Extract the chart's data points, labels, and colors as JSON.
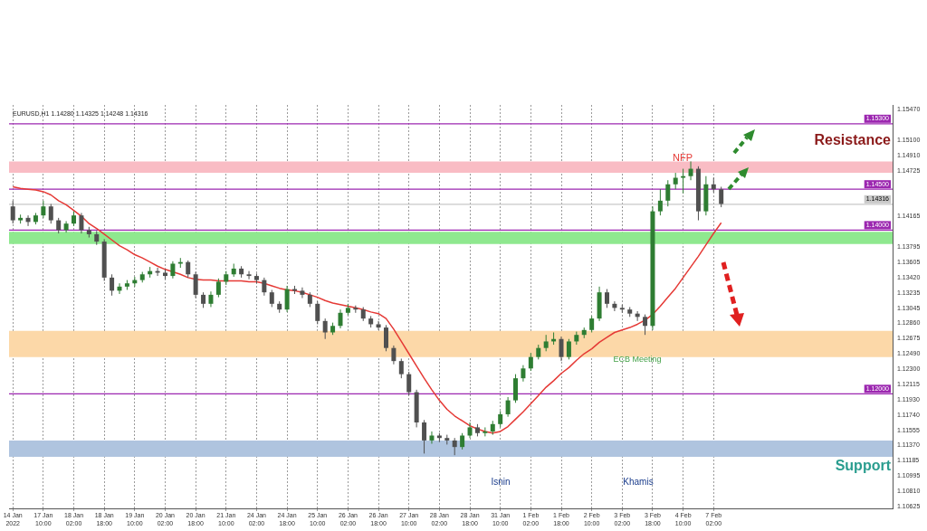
{
  "chart_data": {
    "type": "candlestick",
    "categories": [
      "14 Jan 2022",
      null,
      null,
      null,
      "17 Jan 10:00",
      null,
      null,
      null,
      "18 Jan 02:00",
      null,
      null,
      null,
      "18 Jan 18:00",
      null,
      null,
      null,
      "19 Jan 10:00",
      null,
      null,
      null,
      "20 Jan 02:00",
      null,
      null,
      null,
      "20 Jan 18:00",
      null,
      null,
      null,
      "21 Jan 10:00",
      null,
      null,
      null,
      "24 Jan 02:00",
      null,
      null,
      null,
      "24 Jan 18:00",
      null,
      null,
      null,
      "25 Jan 10:00",
      null,
      null,
      null,
      "26 Jan 02:00",
      null,
      null,
      null,
      "26 Jan 18:00",
      null,
      null,
      null,
      "27 Jan 10:00",
      null,
      null,
      null,
      "28 Jan 02:00",
      null,
      null,
      null,
      "28 Jan 18:00",
      null,
      null,
      null,
      "31 Jan 10:00",
      null,
      null,
      null,
      "1 Feb 02:00",
      null,
      null,
      null,
      "1 Feb 18:00",
      null,
      null,
      null,
      "2 Feb 10:00",
      null,
      null,
      null,
      "3 Feb 02:00",
      null,
      null,
      null,
      "3 Feb 18:00",
      null,
      null,
      null,
      "4 Feb 10:00",
      null,
      null,
      null,
      "7 Feb 02:00",
      null,
      null,
      null,
      null,
      null,
      null,
      null,
      null,
      null,
      null,
      null,
      null,
      null,
      null,
      null,
      null,
      null,
      null,
      null,
      null,
      null,
      null,
      null
    ],
    "ohlc": [
      [
        1.1429,
        1.1436,
        1.1408,
        1.1412
      ],
      [
        1.1412,
        1.1419,
        1.1408,
        1.1415
      ],
      [
        1.1415,
        1.1418,
        1.1405,
        1.141
      ],
      [
        1.141,
        1.1421,
        1.1407,
        1.1418
      ],
      [
        1.1418,
        1.1436,
        1.1415,
        1.1429
      ],
      [
        1.1429,
        1.1432,
        1.1408,
        1.1412
      ],
      [
        1.1412,
        1.1415,
        1.1396,
        1.14
      ],
      [
        1.14,
        1.1411,
        1.1397,
        1.1408
      ],
      [
        1.1408,
        1.1423,
        1.1405,
        1.1418
      ],
      [
        1.1418,
        1.1421,
        1.1396,
        1.14
      ],
      [
        1.14,
        1.1404,
        1.1391,
        1.1395
      ],
      [
        1.1395,
        1.1399,
        1.1382,
        1.1386
      ],
      [
        1.1386,
        1.1389,
        1.1338,
        1.1342
      ],
      [
        1.1342,
        1.1346,
        1.132,
        1.1326
      ],
      [
        1.1326,
        1.1335,
        1.1322,
        1.1331
      ],
      [
        1.1331,
        1.1339,
        1.1327,
        1.1335
      ],
      [
        1.1335,
        1.1343,
        1.1331,
        1.1339
      ],
      [
        1.1339,
        1.1349,
        1.1336,
        1.1346
      ],
      [
        1.1346,
        1.1355,
        1.1342,
        1.135
      ],
      [
        1.135,
        1.1354,
        1.1344,
        1.1348
      ],
      [
        1.1348,
        1.1352,
        1.134,
        1.1344
      ],
      [
        1.1344,
        1.1362,
        1.1341,
        1.1359
      ],
      [
        1.1359,
        1.1366,
        1.1354,
        1.1361
      ],
      [
        1.1361,
        1.1363,
        1.1342,
        1.1346
      ],
      [
        1.1346,
        1.1349,
        1.1317,
        1.1321
      ],
      [
        1.1321,
        1.1324,
        1.1305,
        1.131
      ],
      [
        1.131,
        1.1325,
        1.1306,
        1.1321
      ],
      [
        1.1321,
        1.1341,
        1.1318,
        1.1337
      ],
      [
        1.1337,
        1.135,
        1.1333,
        1.1346
      ],
      [
        1.1346,
        1.1359,
        1.1343,
        1.1353
      ],
      [
        1.1353,
        1.1356,
        1.1342,
        1.1346
      ],
      [
        1.1346,
        1.135,
        1.134,
        1.1344
      ],
      [
        1.1344,
        1.1347,
        1.1335,
        1.1339
      ],
      [
        1.1339,
        1.1342,
        1.132,
        1.1324
      ],
      [
        1.1324,
        1.1327,
        1.1306,
        1.131
      ],
      [
        1.131,
        1.1313,
        1.1299,
        1.1303
      ],
      [
        1.1303,
        1.1332,
        1.13,
        1.1328
      ],
      [
        1.1328,
        1.1332,
        1.1322,
        1.1326
      ],
      [
        1.1326,
        1.133,
        1.1317,
        1.1321
      ],
      [
        1.1321,
        1.1324,
        1.1306,
        1.131
      ],
      [
        1.131,
        1.1313,
        1.1285,
        1.1289
      ],
      [
        1.1289,
        1.1292,
        1.1267,
        1.1275
      ],
      [
        1.1275,
        1.1287,
        1.1272,
        1.1283
      ],
      [
        1.1283,
        1.1303,
        1.128,
        1.1299
      ],
      [
        1.1299,
        1.131,
        1.1296,
        1.1305
      ],
      [
        1.1305,
        1.1308,
        1.1299,
        1.1303
      ],
      [
        1.1303,
        1.1306,
        1.1289,
        1.1292
      ],
      [
        1.1292,
        1.1295,
        1.1281,
        1.1285
      ],
      [
        1.1285,
        1.1289,
        1.1278,
        1.1281
      ],
      [
        1.1281,
        1.1284,
        1.1252,
        1.1256
      ],
      [
        1.1256,
        1.1259,
        1.1236,
        1.124
      ],
      [
        1.124,
        1.1243,
        1.1219,
        1.1224
      ],
      [
        1.1224,
        1.1227,
        1.1198,
        1.1202
      ],
      [
        1.1202,
        1.1205,
        1.1159,
        1.1165
      ],
      [
        1.1165,
        1.1168,
        1.1127,
        1.1143
      ],
      [
        1.1143,
        1.1154,
        1.1139,
        1.1149
      ],
      [
        1.1149,
        1.1152,
        1.1141,
        1.1146
      ],
      [
        1.1146,
        1.115,
        1.1138,
        1.1143
      ],
      [
        1.1143,
        1.1146,
        1.1125,
        1.1135
      ],
      [
        1.1135,
        1.1152,
        1.1132,
        1.1149
      ],
      [
        1.1149,
        1.1165,
        1.1146,
        1.1159
      ],
      [
        1.1159,
        1.1163,
        1.1148,
        1.1152
      ],
      [
        1.1152,
        1.1159,
        1.1148,
        1.1154
      ],
      [
        1.1154,
        1.1167,
        1.115,
        1.1163
      ],
      [
        1.1163,
        1.1179,
        1.1159,
        1.1175
      ],
      [
        1.1175,
        1.1196,
        1.1172,
        1.1192
      ],
      [
        1.1192,
        1.1224,
        1.1189,
        1.1219
      ],
      [
        1.1219,
        1.1235,
        1.1215,
        1.1231
      ],
      [
        1.1231,
        1.125,
        1.1228,
        1.1245
      ],
      [
        1.1245,
        1.126,
        1.1242,
        1.1256
      ],
      [
        1.1256,
        1.1272,
        1.1252,
        1.1264
      ],
      [
        1.1264,
        1.1275,
        1.126,
        1.1267
      ],
      [
        1.1267,
        1.127,
        1.124,
        1.1245
      ],
      [
        1.1245,
        1.1267,
        1.1242,
        1.1264
      ],
      [
        1.1264,
        1.1276,
        1.126,
        1.1272
      ],
      [
        1.1272,
        1.1281,
        1.1268,
        1.1278
      ],
      [
        1.1278,
        1.1295,
        1.1275,
        1.1292
      ],
      [
        1.1292,
        1.1331,
        1.1289,
        1.1324
      ],
      [
        1.1324,
        1.1328,
        1.1305,
        1.131
      ],
      [
        1.131,
        1.1313,
        1.1301,
        1.1305
      ],
      [
        1.1305,
        1.1309,
        1.1299,
        1.1303
      ],
      [
        1.1303,
        1.1306,
        1.1294,
        1.1298
      ],
      [
        1.1298,
        1.1301,
        1.1289,
        1.1294
      ],
      [
        1.1294,
        1.1297,
        1.1272,
        1.1283
      ],
      [
        1.1283,
        1.1429,
        1.1278,
        1.1423
      ],
      [
        1.1423,
        1.145,
        1.1418,
        1.1436
      ],
      [
        1.1436,
        1.1461,
        1.1429,
        1.1456
      ],
      [
        1.1456,
        1.147,
        1.145,
        1.1464
      ],
      [
        1.1464,
        1.1475,
        1.1445,
        1.1466
      ],
      [
        1.1466,
        1.1484,
        1.1461,
        1.1475
      ],
      [
        1.1475,
        1.1478,
        1.1412,
        1.1423
      ],
      [
        1.1423,
        1.1466,
        1.1418,
        1.1456
      ],
      [
        1.1456,
        1.1464,
        1.1446,
        1.145
      ],
      [
        1.145,
        1.1453,
        1.1428,
        1.1432
      ],
      null,
      null,
      null,
      null,
      null,
      null,
      null,
      null,
      null,
      null,
      null,
      null,
      null,
      null,
      null,
      null,
      null,
      null,
      null,
      null,
      null,
      null
    ],
    "colors": [
      "#505050",
      "#2e7d32",
      "#505050",
      "#2e7d32",
      "#2e7d32",
      "#505050",
      "#505050",
      "#2e7d32",
      "#2e7d32",
      "#505050",
      "#505050",
      "#505050",
      "#505050",
      "#505050",
      "#2e7d32",
      "#2e7d32",
      "#2e7d32",
      "#2e7d32",
      "#2e7d32",
      "#505050",
      "#505050",
      "#2e7d32",
      "#2e7d32",
      "#505050",
      "#505050",
      "#505050",
      "#2e7d32",
      "#2e7d32",
      "#2e7d32",
      "#2e7d32",
      "#505050",
      "#505050",
      "#505050",
      "#505050",
      "#505050",
      "#505050",
      "#2e7d32",
      "#505050",
      "#505050",
      "#505050",
      "#505050",
      "#505050",
      "#2e7d32",
      "#2e7d32",
      "#2e7d32",
      "#505050",
      "#505050",
      "#505050",
      "#505050",
      "#505050",
      "#505050",
      "#505050",
      "#505050",
      "#505050",
      "#505050",
      "#2e7d32",
      "#505050",
      "#505050",
      "#505050",
      "#2e7d32",
      "#2e7d32",
      "#505050",
      "#2e7d32",
      "#2e7d32",
      "#2e7d32",
      "#2e7d32",
      "#2e7d32",
      "#2e7d32",
      "#2e7d32",
      "#2e7d32",
      "#2e7d32",
      "#2e7d32",
      "#505050",
      "#2e7d32",
      "#2e7d32",
      "#2e7d32",
      "#2e7d32",
      "#2e7d32",
      "#505050",
      "#505050",
      "#505050",
      "#505050",
      "#505050",
      "#505050",
      "#2e7d32",
      "#2e7d32",
      "#2e7d32",
      "#2e7d32",
      "#2e7d32",
      "#2e7d32",
      "#505050",
      "#2e7d32",
      "#505050",
      "#505050",
      null,
      null,
      null,
      null,
      null,
      null,
      null,
      null,
      null,
      null,
      null,
      null,
      null,
      null,
      null,
      null,
      null,
      null,
      null,
      null,
      null,
      null
    ],
    "series": [
      {
        "type": "line",
        "color": "#e53935",
        "values": [
          1.1453,
          1.1451,
          1.145,
          1.1449,
          1.1447,
          1.1443,
          1.1436,
          1.1431,
          1.1424,
          1.1417,
          1.1408,
          1.1402,
          1.1395,
          1.1388,
          1.1381,
          1.1376,
          1.137,
          1.1366,
          1.1361,
          1.1356,
          1.1352,
          1.1349,
          1.1346,
          1.1342,
          1.134,
          1.1339,
          1.1339,
          1.1338,
          1.1338,
          1.1338,
          1.1338,
          1.1337,
          1.1337,
          1.1335,
          1.1332,
          1.1329,
          1.1327,
          1.1326,
          1.1324,
          1.1321,
          1.1318,
          1.1314,
          1.1311,
          1.1309,
          1.1307,
          1.1305,
          1.1303,
          1.13,
          1.1298,
          1.1292,
          1.1279,
          1.1264,
          1.1249,
          1.1234,
          1.1219,
          1.1205,
          1.1192,
          1.1181,
          1.1173,
          1.1167,
          1.1161,
          1.1157,
          1.1154,
          1.1152,
          1.1154,
          1.116,
          1.1169,
          1.1178,
          1.1188,
          1.1198,
          1.1208,
          1.1216,
          1.1225,
          1.1232,
          1.1241,
          1.1249,
          1.1255,
          1.1263,
          1.1269,
          1.1275,
          1.1278,
          1.1281,
          1.1285,
          1.129,
          1.1297,
          1.1307,
          1.1318,
          1.1329,
          1.1342,
          1.1355,
          1.1368,
          1.1382,
          1.1396,
          1.1409,
          null,
          null,
          null,
          null,
          null,
          null,
          null,
          null,
          null,
          null,
          null,
          null,
          null,
          null,
          null,
          null,
          null,
          null,
          null,
          null,
          null,
          null
        ]
      }
    ],
    "ylim": [
      1.106,
      1.1553
    ],
    "yticks": [
      {
        "value": 1.1547,
        "label": "1.15470"
      },
      {
        "value": 1.151,
        "label": "1.15100"
      },
      {
        "value": 1.1491,
        "label": "1.14910"
      },
      {
        "value": 1.14725,
        "label": "1.14725"
      },
      {
        "value": 1.14165,
        "label": "1.14165"
      },
      {
        "value": 1.13795,
        "label": "1.13795"
      },
      {
        "value": 1.13605,
        "label": "1.13605"
      },
      {
        "value": 1.1342,
        "label": "1.13420"
      },
      {
        "value": 1.13235,
        "label": "1.13235"
      },
      {
        "value": 1.13045,
        "label": "1.13045"
      },
      {
        "value": 1.1286,
        "label": "1.12860"
      },
      {
        "value": 1.12675,
        "label": "1.12675"
      },
      {
        "value": 1.1249,
        "label": "1.12490"
      },
      {
        "value": 1.123,
        "label": "1.12300"
      },
      {
        "value": 1.12115,
        "label": "1.12115"
      },
      {
        "value": 1.1193,
        "label": "1.11930"
      },
      {
        "value": 1.1174,
        "label": "1.11740"
      },
      {
        "value": 1.11555,
        "label": "1.11555"
      },
      {
        "value": 1.1137,
        "label": "1.11370"
      },
      {
        "value": 1.11185,
        "label": "1.11185"
      },
      {
        "value": 1.10995,
        "label": "1.10995"
      },
      {
        "value": 1.1081,
        "label": "1.10810"
      },
      {
        "value": 1.10625,
        "label": "1.10625"
      }
    ],
    "ref_lines": [
      {
        "axis": "y",
        "value": 1.153,
        "label": "1.15300",
        "color": "#9c27b0"
      },
      {
        "axis": "y",
        "value": 1.145,
        "label": "1.14500",
        "color": "#9c27b0"
      },
      {
        "axis": "y",
        "value": 1.14316,
        "label": "1.14316",
        "color": "#c8c8c8"
      },
      {
        "axis": "y",
        "value": 1.14,
        "label": "1.14000",
        "color": "#9c27b0"
      },
      {
        "axis": "y",
        "value": 1.12,
        "label": "1.12000",
        "color": "#9c27b0"
      }
    ],
    "bands": [
      {
        "axis": "y",
        "from": 1.147,
        "to": 1.1484,
        "color": "#f9bcc4"
      },
      {
        "axis": "y",
        "from": 1.1383,
        "to": 1.1398,
        "color": "#8fe88f"
      },
      {
        "axis": "y",
        "from": 1.1245,
        "to": 1.1277,
        "color": "#fcd8a8"
      },
      {
        "axis": "y",
        "from": 1.1123,
        "to": 1.1143,
        "color": "#afc4df"
      }
    ],
    "annotations": [
      "EURUSD,H1 1.14280 1.14325 1.14248 1.14316",
      "Resistance",
      "Support",
      "NFP",
      "ECB Meeting",
      "Isnin",
      "Khamis"
    ],
    "grid": "x"
  }
}
